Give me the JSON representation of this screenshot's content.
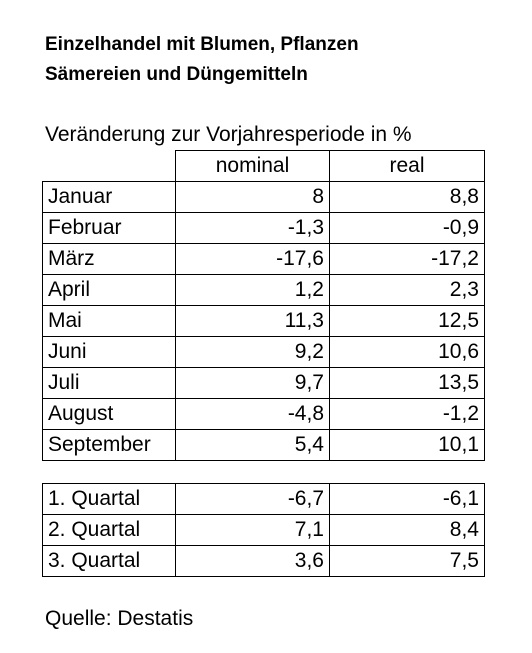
{
  "title_line1": "Einzelhandel mit Blumen, Pflanzen",
  "title_line2": "Sämereien und Düngemitteln",
  "subtitle": "Veränderung zur Vorjahresperiode in %",
  "source": "Quelle: Destatis",
  "chart_data": {
    "type": "table",
    "title": "Einzelhandel mit Blumen, Pflanzen Sämereien und Düngemitteln",
    "subtitle": "Veränderung zur Vorjahresperiode in %",
    "columns": [
      "nominal",
      "real"
    ],
    "months": [
      {
        "label": "Januar",
        "nominal": "8",
        "real": "8,8"
      },
      {
        "label": "Februar",
        "nominal": "-1,3",
        "real": "-0,9"
      },
      {
        "label": "März",
        "nominal": "-17,6",
        "real": "-17,2"
      },
      {
        "label": "April",
        "nominal": "1,2",
        "real": "2,3"
      },
      {
        "label": "Mai",
        "nominal": "11,3",
        "real": "12,5"
      },
      {
        "label": "Juni",
        "nominal": "9,2",
        "real": "10,6"
      },
      {
        "label": "Juli",
        "nominal": "9,7",
        "real": "13,5"
      },
      {
        "label": "August",
        "nominal": "-4,8",
        "real": "-1,2"
      },
      {
        "label": "September",
        "nominal": "5,4",
        "real": "10,1"
      }
    ],
    "quarters": [
      {
        "label": "1. Quartal",
        "nominal": "-6,7",
        "real": "-6,1"
      },
      {
        "label": "2. Quartal",
        "nominal": "7,1",
        "real": "8,4"
      },
      {
        "label": "3. Quartal",
        "nominal": "3,6",
        "real": "7,5"
      }
    ],
    "source": "Quelle: Destatis"
  }
}
